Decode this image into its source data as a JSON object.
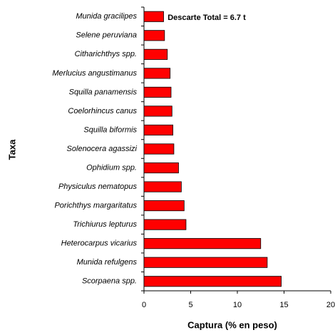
{
  "chart_data": {
    "type": "barh",
    "annotation": "Descarte Total = 6.7 t",
    "x_label": "Captura (% en peso)",
    "y_label": "Taxa",
    "categories": [
      "Munida gracilipes",
      "Selene peruviana",
      "Citharichthys spp.",
      "Merlucius angustimanus",
      "Squilla panamensis",
      "Coelorhincus canus",
      "Squilla biformis",
      "Solenocera agassizi",
      "Ophidium spp.",
      "Physiculus nematopus",
      "Porichthys margaritatus",
      "Trichiurus lepturus",
      "Heterocarpus vicarius",
      "Munida refulgens",
      "Scorpaena spp."
    ],
    "values": [
      2.1,
      2.2,
      2.5,
      2.8,
      2.9,
      3.0,
      3.1,
      3.2,
      3.7,
      4.0,
      4.3,
      4.5,
      12.5,
      13.2,
      14.7
    ],
    "color": "#ff0000",
    "xlim": [
      0,
      20
    ],
    "xticks": [
      0,
      5,
      10,
      15,
      20
    ]
  }
}
